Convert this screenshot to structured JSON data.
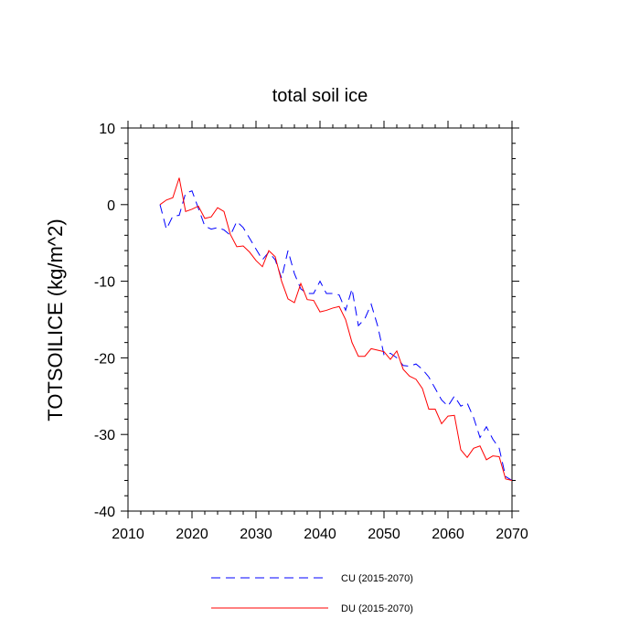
{
  "chart_data": {
    "type": "line",
    "title": "total soil ice",
    "xlabel": "",
    "ylabel": "TOTSOILICE  (kg/m^2)",
    "xlim": [
      2010,
      2070
    ],
    "ylim": [
      -40,
      10
    ],
    "xticks": [
      2010,
      2020,
      2030,
      2040,
      2050,
      2060,
      2070
    ],
    "yticks": [
      10,
      0,
      -10,
      -20,
      -30,
      -40
    ],
    "grid": false,
    "legend": "bottom",
    "x": [
      2015,
      2016,
      2017,
      2018,
      2019,
      2020,
      2021,
      2022,
      2023,
      2024,
      2025,
      2026,
      2027,
      2028,
      2029,
      2030,
      2031,
      2032,
      2033,
      2034,
      2035,
      2036,
      2037,
      2038,
      2039,
      2040,
      2041,
      2042,
      2043,
      2044,
      2045,
      2046,
      2047,
      2048,
      2049,
      2050,
      2051,
      2052,
      2053,
      2054,
      2055,
      2056,
      2057,
      2058,
      2059,
      2060,
      2061,
      2062,
      2063,
      2064,
      2065,
      2066,
      2067,
      2068,
      2069,
      2070
    ],
    "series": [
      {
        "name": "CU (2015-2070)",
        "color": "#0000ff",
        "style": "dashed",
        "values": [
          0.0,
          -3.2,
          -1.5,
          -1.4,
          1.5,
          1.8,
          -0.5,
          -2.8,
          -3.2,
          -3.0,
          -3.3,
          -4.0,
          -2.2,
          -3.0,
          -4.4,
          -5.8,
          -7.2,
          -6.2,
          -7.2,
          -9.6,
          -6.0,
          -9.0,
          -11.0,
          -11.6,
          -11.6,
          -10.0,
          -11.6,
          -11.6,
          -11.8,
          -13.8,
          -11.0,
          -15.8,
          -14.9,
          -13.0,
          -15.8,
          -19.6,
          -19.4,
          -20.0,
          -21.0,
          -21.1,
          -20.8,
          -21.5,
          -22.5,
          -24.0,
          -25.5,
          -26.3,
          -25.0,
          -26.3,
          -25.9,
          -27.8,
          -30.4,
          -29.0,
          -30.6,
          -31.8,
          -35.5,
          -36.0
        ]
      },
      {
        "name": "DU (2015-2070)",
        "color": "#ff0000",
        "style": "solid",
        "values": [
          0.0,
          0.6,
          0.9,
          3.5,
          -0.9,
          -0.6,
          -0.2,
          -1.8,
          -1.6,
          -0.4,
          -0.9,
          -3.9,
          -5.5,
          -5.4,
          -6.2,
          -7.3,
          -8.1,
          -6.0,
          -6.8,
          -10.0,
          -12.3,
          -12.8,
          -10.3,
          -12.4,
          -12.5,
          -14.0,
          -13.8,
          -13.5,
          -13.3,
          -15.0,
          -18.0,
          -19.8,
          -19.8,
          -18.8,
          -19.0,
          -19.2,
          -20.2,
          -19.1,
          -21.5,
          -22.4,
          -22.8,
          -24.0,
          -26.7,
          -26.7,
          -28.6,
          -27.6,
          -27.5,
          -32.0,
          -33.0,
          -31.8,
          -31.5,
          -33.3,
          -32.8,
          -32.9,
          -35.8,
          -36.0
        ]
      }
    ]
  }
}
